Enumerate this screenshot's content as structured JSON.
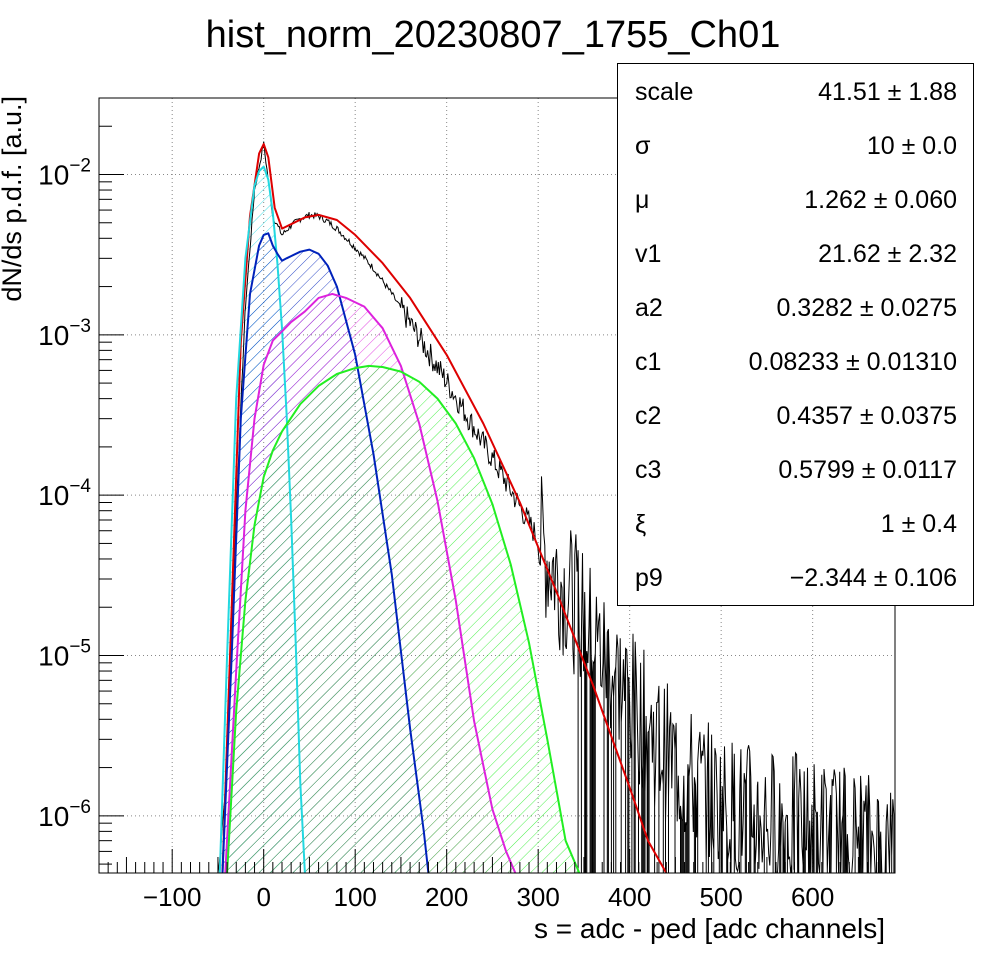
{
  "chart_data": {
    "type": "line",
    "title": "hist_norm_20230807_1755_Ch01",
    "xlabel": "s = adc - ped [adc channels]",
    "ylabel": "dN/ds p.d.f. [a.u.]",
    "xlim": [
      -180,
      690
    ],
    "ylim": [
      4.4e-07,
      0.03
    ],
    "yscale": "log",
    "grid": true,
    "x_ticks": [
      {
        "value": -100,
        "label": "−100"
      },
      {
        "value": 0,
        "label": "0"
      },
      {
        "value": 100,
        "label": "100"
      },
      {
        "value": 200,
        "label": "200"
      },
      {
        "value": 300,
        "label": "300"
      },
      {
        "value": 400,
        "label": "400"
      },
      {
        "value": 500,
        "label": "500"
      },
      {
        "value": 600,
        "label": "600"
      }
    ],
    "y_ticks": [
      {
        "value": 0.01,
        "base": "10",
        "exp": "−2"
      },
      {
        "value": 0.001,
        "base": "10",
        "exp": "−3"
      },
      {
        "value": 0.0001,
        "base": "10",
        "exp": "−4"
      },
      {
        "value": 1e-05,
        "base": "10",
        "exp": "−5"
      },
      {
        "value": 1e-06,
        "base": "10",
        "exp": "−6"
      }
    ],
    "series": [
      {
        "color": "#000000",
        "kind": "histogram",
        "x": [
          -50,
          -40,
          -30,
          -20,
          -10,
          0,
          10,
          20,
          30,
          40,
          50,
          60,
          70,
          80,
          100,
          120,
          140,
          160,
          180,
          200,
          220,
          240,
          260,
          280,
          300,
          320,
          340,
          360,
          380,
          400,
          420,
          440,
          460,
          480,
          500,
          540,
          580,
          620,
          660,
          690
        ],
        "y": [
          4e-07,
          2e-06,
          8e-05,
          0.0015,
          0.008,
          0.0155,
          0.0055,
          0.0042,
          0.0048,
          0.0053,
          0.0056,
          0.0055,
          0.0051,
          0.0046,
          0.0035,
          0.0026,
          0.0018,
          0.00118,
          0.00078,
          0.00051,
          0.00033,
          0.00021,
          0.000135,
          8.5e-05,
          5.3e-05,
          3.3e-05,
          2.1e-05,
          1.3e-05,
          8.5e-06,
          5.5e-06,
          3.5e-06,
          2.5e-06,
          1.8e-06,
          1.5e-06,
          1.2e-06,
          1e-06,
          9e-07,
          8e-07,
          7e-07,
          6e-07
        ]
      },
      {
        "color": "#dd0000",
        "kind": "fit",
        "x": [
          -45,
          -35,
          -25,
          -15,
          -5,
          0,
          5,
          12,
          20,
          30,
          45,
          60,
          80,
          100,
          130,
          160,
          200,
          240,
          280,
          320,
          360,
          400,
          420,
          440
        ],
        "y": [
          4.4e-07,
          2e-05,
          0.0009,
          0.0055,
          0.0135,
          0.0155,
          0.0128,
          0.0062,
          0.0046,
          0.0049,
          0.0054,
          0.0056,
          0.0052,
          0.0042,
          0.0028,
          0.0017,
          0.00075,
          0.00028,
          9e-05,
          2.5e-05,
          6.5e-06,
          1.5e-06,
          7e-07,
          4.4e-07
        ]
      },
      {
        "color": "#22d8e0",
        "kind": "component",
        "hatch": true,
        "x": [
          -48,
          -40,
          -30,
          -20,
          -10,
          -5,
          0,
          5,
          10,
          15,
          20,
          25,
          30,
          35,
          40,
          45
        ],
        "y": [
          4.4e-07,
          1e-05,
          0.0004,
          0.003,
          0.0085,
          0.0105,
          0.0112,
          0.0093,
          0.0058,
          0.0028,
          0.0011,
          0.00032,
          7.2e-05,
          1.2e-05,
          1.6e-06,
          4.4e-07
        ]
      },
      {
        "color": "#0022bb",
        "kind": "component",
        "hatch": true,
        "x": [
          -45,
          -35,
          -25,
          -15,
          -5,
          0,
          5,
          10,
          15,
          20,
          25,
          30,
          40,
          50,
          60,
          70,
          80,
          100,
          120,
          140,
          160,
          175,
          180
        ],
        "y": [
          4.4e-07,
          1e-05,
          0.0003,
          0.0018,
          0.0036,
          0.0042,
          0.0043,
          0.0036,
          0.0032,
          0.0029,
          0.003,
          0.0031,
          0.0033,
          0.0034,
          0.0032,
          0.0027,
          0.002,
          0.00075,
          0.00018,
          3.2e-05,
          3.5e-06,
          8e-07,
          4.4e-07
        ]
      },
      {
        "color": "#dd22dd",
        "kind": "component",
        "hatch": true,
        "x": [
          -42,
          -30,
          -20,
          -10,
          0,
          10,
          20,
          30,
          45,
          60,
          75,
          90,
          110,
          130,
          150,
          170,
          190,
          210,
          230,
          250,
          265,
          275
        ],
        "y": [
          4.4e-07,
          8e-06,
          8e-05,
          0.0003,
          0.00065,
          0.00092,
          0.00105,
          0.0012,
          0.0014,
          0.0017,
          0.0018,
          0.0017,
          0.0015,
          0.0011,
          0.00064,
          0.00028,
          9.2e-05,
          2.2e-05,
          3.9e-06,
          1.1e-06,
          6e-07,
          4.4e-07
        ]
      },
      {
        "color": "#22ee22",
        "kind": "component",
        "hatch": true,
        "x": [
          -40,
          -30,
          -20,
          -10,
          0,
          10,
          20,
          40,
          60,
          80,
          100,
          115,
          130,
          150,
          170,
          190,
          210,
          230,
          250,
          270,
          290,
          310,
          330,
          345
        ],
        "y": [
          4.4e-07,
          4.5e-06,
          2.2e-05,
          6.5e-05,
          0.00013,
          0.00019,
          0.00025,
          0.00037,
          0.00048,
          0.00057,
          0.00062,
          0.00064,
          0.00063,
          0.00059,
          0.00051,
          0.0004,
          0.00028,
          0.00017,
          8.8e-05,
          3.7e-05,
          1.2e-05,
          3e-06,
          7e-07,
          4.4e-07
        ]
      }
    ]
  },
  "stats_box": {
    "rows": [
      {
        "name": "scale",
        "value": "41.51 ± 1.88"
      },
      {
        "name": "σ",
        "value": "10 ± 0.0"
      },
      {
        "name": "μ",
        "value": "1.262 ± 0.060"
      },
      {
        "name": "v1",
        "value": "21.62 ± 2.32"
      },
      {
        "name": "a2",
        "value": "0.3282 ± 0.0275"
      },
      {
        "name": "c1",
        "value": "0.08233 ± 0.01310"
      },
      {
        "name": "c2",
        "value": "0.4357 ± 0.0375"
      },
      {
        "name": "c3",
        "value": "0.5799 ± 0.0117"
      },
      {
        "name": "ξ",
        "value": "1 ± 0.4"
      },
      {
        "name": "p9",
        "value": "−2.344 ± 0.106"
      }
    ]
  }
}
